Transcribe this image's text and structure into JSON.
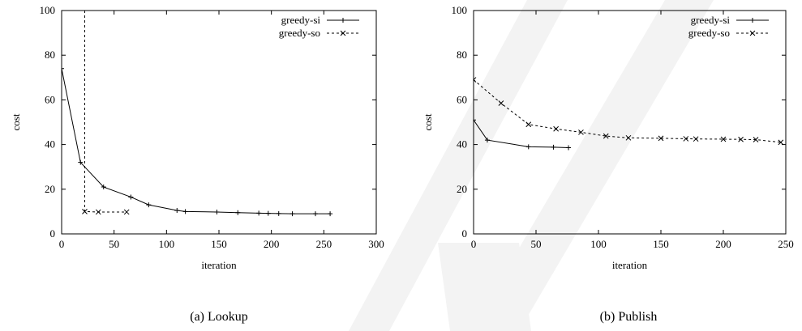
{
  "chart_data": [
    {
      "type": "line",
      "title": "",
      "caption": "(a) Lookup",
      "xlabel": "iteration",
      "ylabel": "cost",
      "xlim": [
        0,
        300
      ],
      "ylim": [
        0,
        100
      ],
      "xticks": [
        0,
        50,
        100,
        150,
        200,
        250,
        300
      ],
      "yticks": [
        0,
        20,
        40,
        60,
        80,
        100
      ],
      "grid": false,
      "legend_position": "top-right",
      "series": [
        {
          "name": "greedy-si",
          "marker": "plus",
          "line_style": "solid",
          "x": [
            0,
            18,
            40,
            66,
            83,
            110,
            118,
            148,
            168,
            188,
            197,
            207,
            220,
            242,
            256
          ],
          "y": [
            74,
            32,
            21,
            16.5,
            13,
            10.5,
            10,
            9.8,
            9.5,
            9.3,
            9.2,
            9.1,
            9.0,
            9.0,
            9.0
          ]
        },
        {
          "name": "greedy-so",
          "marker": "cross",
          "line_style": "dashed",
          "x": [
            22,
            22,
            35,
            62
          ],
          "y": [
            100,
            10,
            9.8,
            9.8
          ]
        }
      ]
    },
    {
      "type": "line",
      "title": "",
      "caption": "(b) Publish",
      "xlabel": "iteration",
      "ylabel": "cost",
      "xlim": [
        0,
        250
      ],
      "ylim": [
        0,
        100
      ],
      "xticks": [
        0,
        50,
        100,
        150,
        200,
        250
      ],
      "yticks": [
        0,
        20,
        40,
        60,
        80,
        100
      ],
      "grid": false,
      "legend_position": "top-right",
      "series": [
        {
          "name": "greedy-si",
          "marker": "plus",
          "line_style": "solid",
          "x": [
            0,
            11,
            44,
            64,
            76
          ],
          "y": [
            51,
            42,
            39,
            38.8,
            38.6
          ]
        },
        {
          "name": "greedy-so",
          "marker": "cross",
          "line_style": "dashed",
          "x": [
            0,
            22,
            44,
            66,
            86,
            106,
            124,
            150,
            170,
            178,
            200,
            214,
            226,
            246
          ],
          "y": [
            69,
            58.5,
            49,
            47,
            45.5,
            43.8,
            43,
            42.8,
            42.6,
            42.5,
            42.4,
            42.3,
            42.2,
            41
          ]
        }
      ]
    }
  ],
  "colors": {
    "line": "#000000",
    "watermark": "#f2f2f2"
  }
}
